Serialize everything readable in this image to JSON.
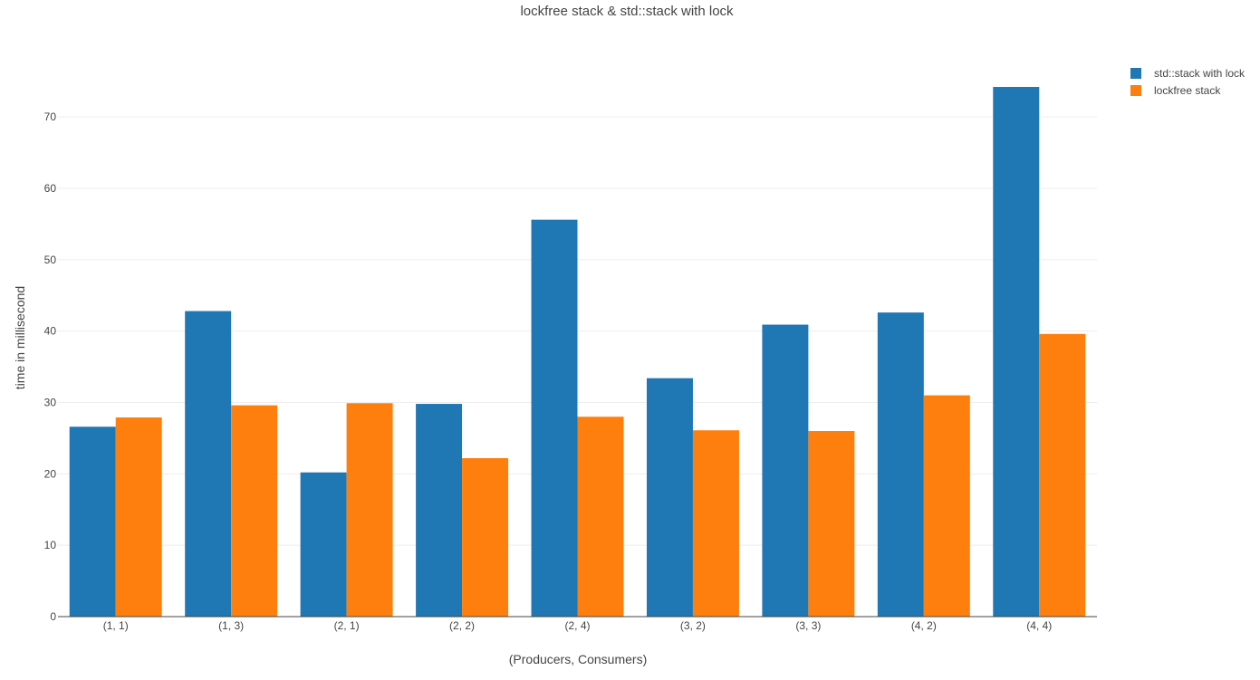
{
  "chart_data": {
    "type": "bar",
    "title": "lockfree stack & std::stack with lock",
    "xlabel": "(Producers, Consumers)",
    "ylabel": "time in millisecond",
    "categories": [
      "(1, 1)",
      "(1, 3)",
      "(2, 1)",
      "(2, 2)",
      "(2, 4)",
      "(3, 2)",
      "(3, 3)",
      "(4, 2)",
      "(4, 4)"
    ],
    "series": [
      {
        "name": "std::stack with lock",
        "color": "#1f77b4",
        "values": [
          26.6,
          42.8,
          20.2,
          29.8,
          55.6,
          33.4,
          40.9,
          42.6,
          74.2
        ]
      },
      {
        "name": "lockfree stack",
        "color": "#ff7f0e",
        "values": [
          27.9,
          29.6,
          29.9,
          22.2,
          28.0,
          26.1,
          26.0,
          31.0,
          39.6
        ]
      }
    ],
    "ylim": [
      0,
      77.5
    ],
    "yticks": [
      0,
      10,
      20,
      30,
      40,
      50,
      60,
      70
    ],
    "grid": true,
    "legend": "top-right"
  }
}
